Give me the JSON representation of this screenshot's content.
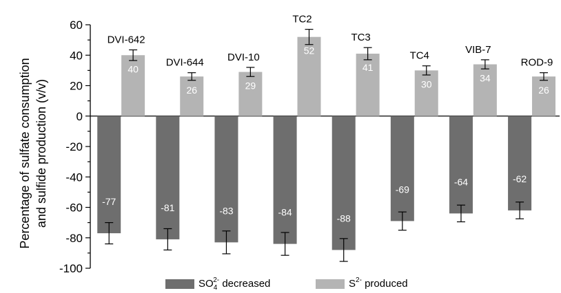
{
  "chart_data": {
    "type": "bar",
    "categories": [
      "DVI-642",
      "DVI-644",
      "DVI-10",
      "TC2",
      "TC3",
      "TC4",
      "VIB-7",
      "ROD-9"
    ],
    "series": [
      {
        "name": "SO42- decreased",
        "legend": {
          "base": "SO",
          "sub": "4",
          "sup": "2-",
          "tail": " decreased"
        },
        "color": "#6e6e6e",
        "values": [
          -77,
          -81,
          -83,
          -84,
          -88,
          -69,
          -64,
          -62
        ],
        "labels": [
          "-77",
          "-81",
          "-83",
          "-84",
          "-88",
          "-69",
          "-64",
          "-62"
        ],
        "errors": [
          7,
          7,
          7.5,
          7.5,
          7.5,
          6,
          5.5,
          5.5
        ]
      },
      {
        "name": "S2- produced",
        "legend": {
          "base": "S",
          "sub": "",
          "sup": "2-",
          "tail": " produced"
        },
        "color": "#b4b4b4",
        "values": [
          40,
          26,
          29,
          52,
          41,
          30,
          34,
          26
        ],
        "labels": [
          "40",
          "26",
          "29",
          "52",
          "41",
          "30",
          "34",
          "26"
        ],
        "errors": [
          3.5,
          2.5,
          3,
          5,
          4,
          3,
          3,
          2.5
        ]
      }
    ],
    "ylabel_line1": "Percentage of sulfate consumption",
    "ylabel_line2": "and sulfide production (v/v)",
    "ylim": [
      -100,
      60
    ],
    "yticks": [
      60,
      40,
      20,
      0,
      -20,
      -40,
      -60,
      -80,
      -100
    ],
    "legend_position": "bottom"
  }
}
